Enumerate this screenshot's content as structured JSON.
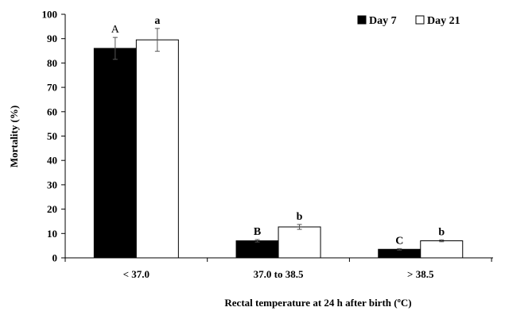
{
  "chart_data": {
    "type": "bar",
    "categories": [
      "< 37.0",
      "37.0 to 38.5",
      "> 38.5"
    ],
    "series": [
      {
        "name": "Day 7",
        "color": "#000000",
        "values": [
          86,
          7,
          3.5
        ],
        "errors": [
          4.5,
          0.5,
          0.3
        ],
        "annotations": [
          "A",
          "B",
          "C"
        ]
      },
      {
        "name": "Day 21",
        "color": "#ffffff",
        "values": [
          89.5,
          12.7,
          7
        ],
        "errors": [
          4.7,
          1,
          0.4
        ],
        "annotations": [
          "a",
          "b",
          "b"
        ]
      }
    ],
    "xlabel": "Rectal temperature at 24 h after birth (ºC)",
    "ylabel": "Mortality (%)",
    "ylim": [
      0,
      100
    ],
    "yticks": [
      0,
      10,
      20,
      30,
      40,
      50,
      60,
      70,
      80,
      90,
      100
    ],
    "grid": false,
    "legend": "top-right"
  }
}
